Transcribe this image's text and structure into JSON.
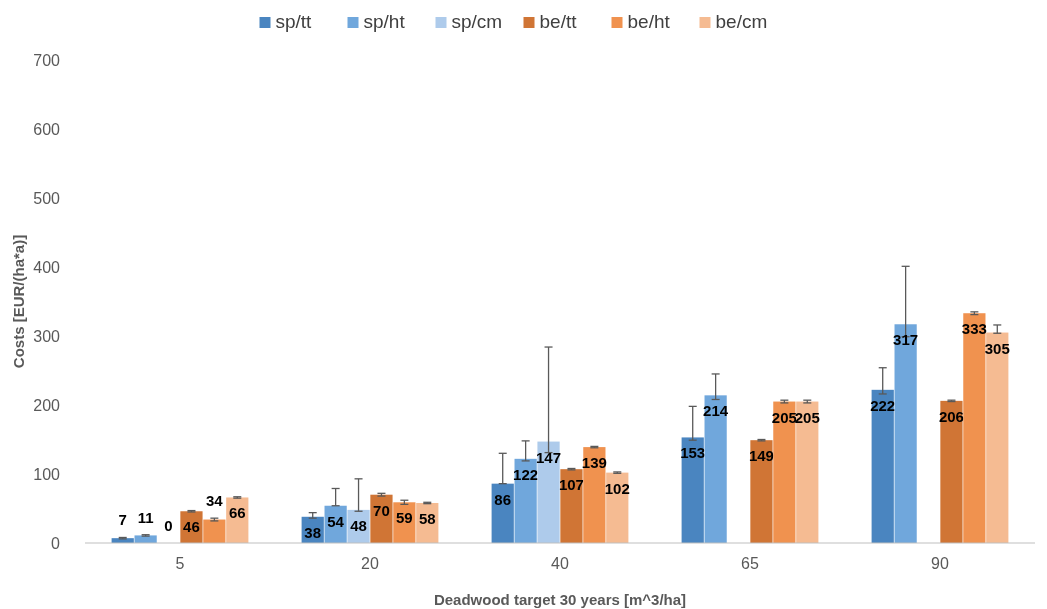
{
  "chart_data": {
    "type": "bar",
    "xlabel": "Deadwood target 30 years [m^3/ha]",
    "ylabel": "Costs [EUR/(ha*a)]",
    "categories": [
      "5",
      "20",
      "40",
      "65",
      "90"
    ],
    "series": [
      {
        "name": "sp/tt",
        "color": "#4a85c0",
        "values": [
          7,
          38,
          86,
          153,
          222
        ],
        "errors": [
          1,
          [
            36,
            44
          ],
          [
            86,
            130
          ],
          [
            149,
            198
          ],
          [
            216,
            254
          ]
        ]
      },
      {
        "name": "sp/ht",
        "color": "#70a7dc",
        "values": [
          11,
          54,
          122,
          214,
          317
        ],
        "errors": [
          1,
          [
            54,
            79
          ],
          [
            119,
            148
          ],
          [
            208,
            245
          ],
          [
            299,
            401
          ]
        ]
      },
      {
        "name": "sp/cm",
        "color": "#aecbeb",
        "values": [
          0,
          48,
          147,
          null,
          null
        ],
        "errors": [
          null,
          [
            46,
            93
          ],
          [
            131,
            284
          ],
          null,
          null
        ]
      },
      {
        "name": "be/tt",
        "color": "#d07535",
        "values": [
          46,
          70,
          107,
          149,
          206
        ],
        "errors": [
          1,
          2,
          1,
          1,
          1
        ]
      },
      {
        "name": "be/ht",
        "color": "#f0924f",
        "values": [
          34,
          59,
          139,
          205,
          333
        ],
        "errors": [
          2,
          3,
          1,
          2,
          2
        ]
      },
      {
        "name": "be/cm",
        "color": "#f5bb92",
        "values": [
          66,
          58,
          102,
          205,
          305
        ],
        "errors": [
          1,
          1,
          1,
          2,
          [
            304,
            316
          ]
        ]
      }
    ],
    "ylim": [
      0,
      700
    ],
    "yticks": [
      0,
      100,
      200,
      300,
      400,
      500,
      600,
      700
    ],
    "grid": false,
    "legend": "top",
    "data_labels": true
  }
}
